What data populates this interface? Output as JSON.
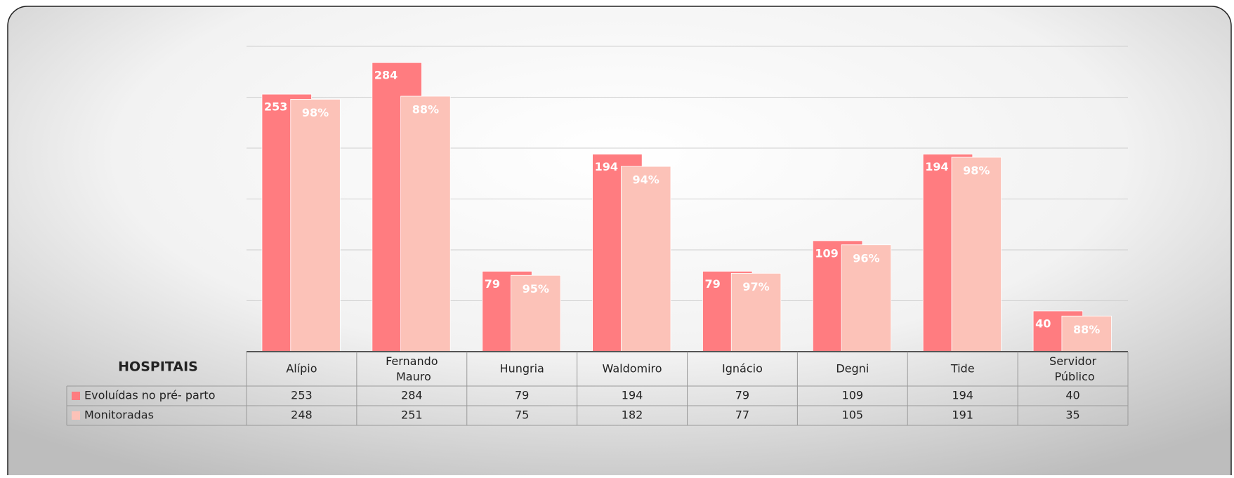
{
  "chart_data": {
    "type": "bar",
    "table_header": "HOSPITAIS",
    "categories": [
      "Alípio",
      "Fernando Mauro",
      "Hungria",
      "Waldomiro",
      "Ignácio",
      "Degni",
      "Tide",
      "Servidor Público"
    ],
    "series": [
      {
        "name": "Evoluídas no pré- parto",
        "color": "#ff7c80",
        "values": [
          253,
          284,
          79,
          194,
          79,
          109,
          194,
          40
        ]
      },
      {
        "name": "Monitoradas",
        "color": "#fcc2b8",
        "values": [
          248,
          251,
          75,
          182,
          77,
          105,
          191,
          35
        ],
        "data_labels": [
          "98%",
          "88%",
          "95%",
          "94%",
          "97%",
          "96%",
          "98%",
          "88%"
        ]
      }
    ],
    "ylim": [
      0,
      300
    ],
    "yticks": [
      0,
      50,
      100,
      150,
      200,
      250,
      300
    ],
    "grid": true
  }
}
